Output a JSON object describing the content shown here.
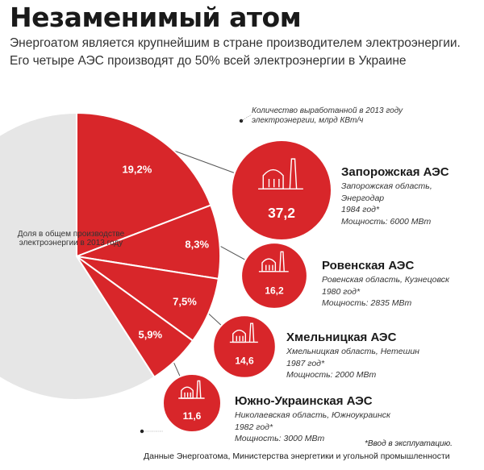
{
  "header": {
    "title": "Незаменимый атом",
    "subtitle": "Энергоатом является крупнейшим в стране производителем электроэнергии. Его четыре АЭС производят до 50% всей электроэнергии в Украине"
  },
  "labels": {
    "share_label": "Доля в общем производстве электроэнергии в 2013 году",
    "circle_label": "Количество выработанной в 2013 году электроэнергии, млрд КВт/ч",
    "footnote": "*Ввод в эксплуатацию.",
    "source": "Данные Энергоатома, Министерства энергетики и угольной промышленности"
  },
  "plants": [
    {
      "name": "Запорожская АЭС",
      "region": "Запорожская область,",
      "city": "Энергодар",
      "year": "1984 год*",
      "capacity": "Мощность: 6000 МВт",
      "output_label": "37,2",
      "share_label": "19,2%"
    },
    {
      "name": "Ровенская АЭС",
      "region": "Ровенская область, Кузнецовск",
      "city": "",
      "year": "1980 год*",
      "capacity": "Мощность: 2835 МВт",
      "output_label": "16,2",
      "share_label": "8,3%"
    },
    {
      "name": "Хмельницкая АЭС",
      "region": "Хмельницкая область, Нетешин",
      "city": "",
      "year": "1987 год*",
      "capacity": "Мощность: 2000 МВт",
      "output_label": "14,6",
      "share_label": "7,5%"
    },
    {
      "name": "Южно-Украинская АЭС",
      "region": "Николаевская область, Южноукраинск",
      "city": "",
      "year": "1982 год*",
      "capacity": "Мощность: 3000 МВт",
      "output_label": "11,6",
      "share_label": "5,9%"
    }
  ],
  "colors": {
    "accent": "#d8262a",
    "other": "#e6e6e6"
  },
  "chart_data": {
    "type": "pie",
    "categories": [
      "Запорожская АЭС",
      "Ровенская АЭС",
      "Хмельницкая АЭС",
      "Южно-Украинская АЭС"
    ],
    "share_percent": [
      19.2,
      8.3,
      7.5,
      5.9
    ],
    "output_bln_kwh": [
      37.2,
      16.2,
      14.6,
      11.6
    ],
    "remainder_percent": 59.1
  }
}
